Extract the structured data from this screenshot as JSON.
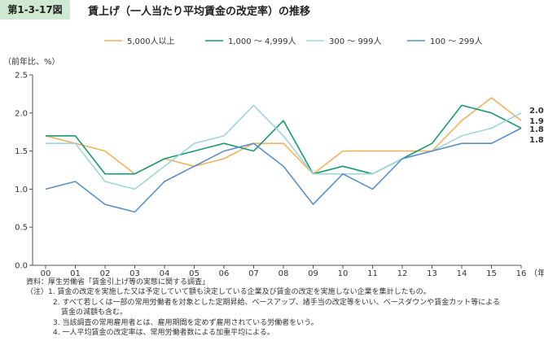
{
  "figure": {
    "number": "第1-3-17図",
    "title": "賃上げ（一人当たり平均賃金の改定率）の推移"
  },
  "chart_data": {
    "type": "line",
    "ylabel": "（前年比、%）",
    "xunit": "（年）",
    "ylim": [
      0.0,
      2.5
    ],
    "yticks": [
      "0.0",
      "0.5",
      "1.0",
      "1.5",
      "2.0",
      "2.5"
    ],
    "categories": [
      "00",
      "01",
      "02",
      "03",
      "04",
      "05",
      "06",
      "07",
      "08",
      "09",
      "10",
      "11",
      "12",
      "13",
      "14",
      "15",
      "16"
    ],
    "legend_position": "top",
    "grid": false,
    "series": [
      {
        "name": "5,000人以上",
        "color": "#f2b25c",
        "values": [
          1.7,
          1.6,
          1.5,
          1.2,
          1.4,
          1.3,
          1.4,
          1.6,
          1.6,
          1.2,
          1.5,
          1.5,
          1.5,
          1.5,
          1.9,
          2.2,
          1.9
        ]
      },
      {
        "name": "1,000 ～ 4,999人",
        "color": "#1a9a74",
        "values": [
          1.7,
          1.7,
          1.2,
          1.2,
          1.4,
          1.5,
          1.6,
          1.5,
          1.9,
          1.2,
          1.3,
          1.2,
          1.4,
          1.6,
          2.1,
          2.0,
          1.8
        ]
      },
      {
        "name": "300 ～ 999人",
        "color": "#9fd6d9",
        "values": [
          1.6,
          1.6,
          1.1,
          1.0,
          1.3,
          1.6,
          1.7,
          2.1,
          1.7,
          1.2,
          1.2,
          1.2,
          1.4,
          1.5,
          1.7,
          1.8,
          2.0
        ]
      },
      {
        "name": "100 ～ 299人",
        "color": "#5b8ec9",
        "values": [
          1.0,
          1.1,
          0.8,
          0.7,
          1.1,
          1.3,
          1.5,
          1.6,
          1.3,
          0.8,
          1.2,
          1.0,
          1.4,
          1.5,
          1.6,
          1.6,
          1.8
        ]
      }
    ],
    "end_labels": [
      "2.0",
      "1.9",
      "1.8",
      "1.8"
    ]
  },
  "notes": {
    "source": "資料：厚生労働省「賃金引上げ等の実態に関する調査」",
    "note1": "（注）1. 賃金の改定を実施した又は予定していて額も決定している企業及び賃金の改定を実施しない企業を集計したもの。",
    "note2a": "2. すべて若しくは一部の常用労働者を対象とした定期昇給、ベースアップ、諸手当の改定等をいい、ベースダウンや賃金カット等による",
    "note2b": "賃金の減額も含む。",
    "note3": "3. 当該調査の常用雇用者とは、雇用期間を定めず雇用されている労働者をいう。",
    "note4": "4. 一人平均賃金の改定率は、常用労働者数による加重平均による。"
  }
}
